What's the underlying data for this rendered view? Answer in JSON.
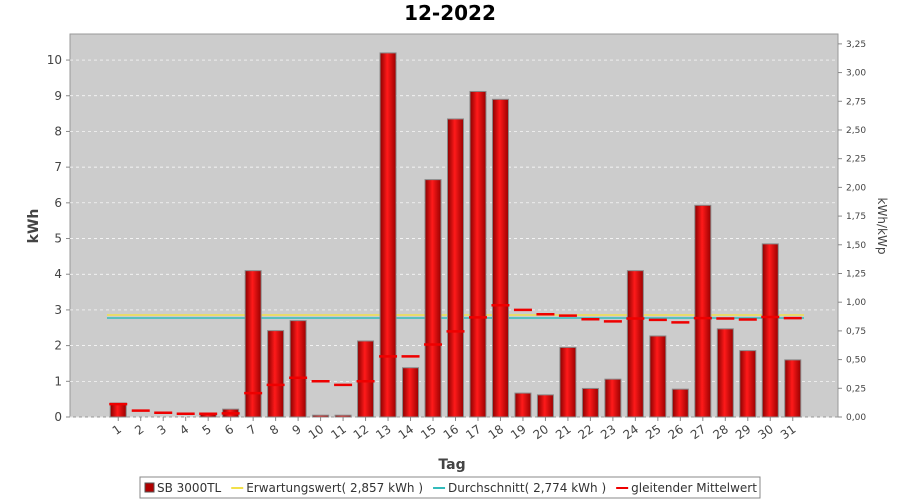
{
  "chart_data": {
    "type": "bar",
    "title": "12-2022",
    "x_label": "Tag",
    "y_label": "kWh",
    "y2_label": "kWh/kWp",
    "categories": [
      "1",
      "2",
      "3",
      "4",
      "5",
      "6",
      "7",
      "8",
      "9",
      "10",
      "11",
      "12",
      "13",
      "14",
      "15",
      "16",
      "17",
      "18",
      "19",
      "20",
      "21",
      "22",
      "23",
      "24",
      "25",
      "26",
      "27",
      "28",
      "29",
      "30",
      "31"
    ],
    "series": [
      {
        "name": "SB 3000TL",
        "color": "#dd0000",
        "type": "bar",
        "values": [
          0.39,
          0,
          0,
          0,
          0.08,
          0.22,
          4.1,
          2.42,
          2.7,
          0.05,
          0.05,
          2.13,
          10.2,
          1.38,
          6.65,
          8.35,
          9.12,
          8.9,
          0.67,
          0.62,
          1.95,
          0.8,
          1.06,
          4.1,
          2.27,
          0.78,
          5.93,
          2.47,
          1.86,
          4.85,
          1.6
        ]
      },
      {
        "name": "gleitender Mittelwert",
        "color": "#ee0000",
        "type": "dash",
        "values": [
          0.36,
          0.18,
          0.12,
          0.09,
          0.09,
          0.1,
          0.67,
          0.9,
          1.1,
          1.0,
          0.9,
          1.0,
          1.7,
          1.7,
          2.03,
          2.4,
          2.79,
          3.13,
          3.0,
          2.88,
          2.84,
          2.74,
          2.68,
          2.76,
          2.72,
          2.65,
          2.77,
          2.76,
          2.73,
          2.8,
          2.77
        ]
      }
    ],
    "reference_lines": [
      {
        "name": "Erwartungswert( 2,857 kWh )",
        "value": 2.857,
        "color": "#f2e04a"
      },
      {
        "name": "Durchschnitt( 2,774 kWh )",
        "value": 2.774,
        "color": "#33bbbb"
      }
    ],
    "ylim": [
      0,
      10.73
    ],
    "yticks": [
      0,
      1,
      2,
      3,
      4,
      5,
      6,
      7,
      8,
      9,
      10
    ],
    "y2lim": [
      0,
      3.336
    ],
    "y2ticks": [
      {
        "value": 0,
        "label": "0,00"
      },
      {
        "value": 0.25,
        "label": "0,25"
      },
      {
        "value": 0.5,
        "label": "0,50"
      },
      {
        "value": 0.75,
        "label": "0,75"
      },
      {
        "value": 1,
        "label": "1,00"
      },
      {
        "value": 1.25,
        "label": "1,25"
      },
      {
        "value": 1.5,
        "label": "1,50"
      },
      {
        "value": 1.75,
        "label": "1,75"
      },
      {
        "value": 2,
        "label": "2,00"
      },
      {
        "value": 2.25,
        "label": "2,25"
      },
      {
        "value": 2.5,
        "label": "2,50"
      },
      {
        "value": 2.75,
        "label": "2,75"
      },
      {
        "value": 3,
        "label": "3,00"
      },
      {
        "value": 3.25,
        "label": "3,25"
      }
    ],
    "grid": true
  }
}
